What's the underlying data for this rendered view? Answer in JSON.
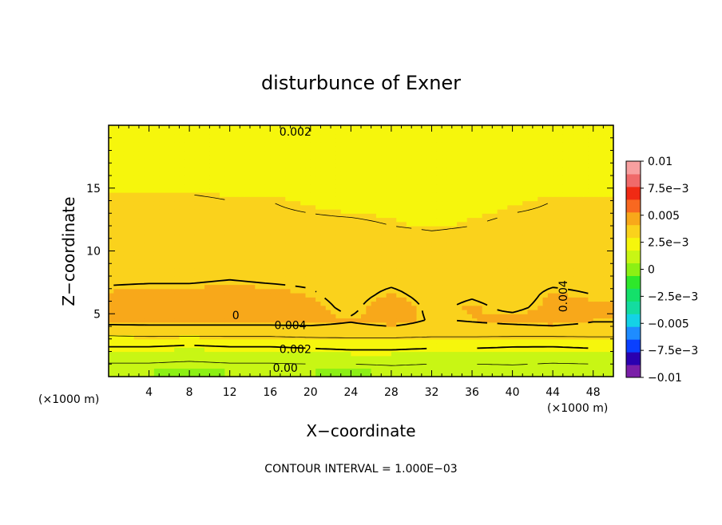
{
  "chart_data": {
    "type": "heatmap",
    "title": "disturbunce of Exner",
    "xlabel": "X−coordinate",
    "ylabel": "Z−coordinate",
    "x_unit": "(×1000 m)",
    "y_unit": "(×1000 m)",
    "xlim": [
      0,
      50
    ],
    "ylim": [
      0,
      20
    ],
    "x_ticks": [
      4,
      8,
      12,
      16,
      20,
      24,
      28,
      32,
      36,
      40,
      44,
      48
    ],
    "y_ticks": [
      5,
      10,
      15
    ],
    "colorbar": {
      "range": [
        -0.01,
        0.01
      ],
      "tick_values": [
        0.01,
        0.0075,
        0.005,
        0.0025,
        0,
        -0.0025,
        -0.005,
        -0.0075,
        -0.01
      ],
      "tick_labels": [
        "0.01",
        "7.5e−3",
        "0.005",
        "2.5e−3",
        "0",
        "−2.5e−3",
        "−0.005",
        "−7.5e−3",
        "−0.01"
      ],
      "colors": [
        "#7a1fa8",
        "#2a00b0",
        "#0a40ff",
        "#1e8cff",
        "#14d2e6",
        "#14dca0",
        "#14e06a",
        "#2ee82a",
        "#8cf014",
        "#c8f614",
        "#f6f60c",
        "#fad21c",
        "#f8a81a",
        "#f86820",
        "#f02a14",
        "#f06a6a",
        "#f8a0a0"
      ]
    },
    "z_rows": [
      {
        "z": 0.5,
        "values": [
          0.0006,
          0.0006,
          0.0005,
          0.0006,
          0.0006,
          0.0006,
          0.0005,
          0.0007,
          0.0006,
          0.0006,
          0.0007,
          0.0006,
          0.0006
        ]
      },
      {
        "z": 1.5,
        "values": [
          0.0013,
          0.0013,
          0.0012,
          0.0013,
          0.0013,
          0.0014,
          0.0015,
          0.0015,
          0.0014,
          0.0014,
          0.0014,
          0.0013,
          0.0014
        ]
      },
      {
        "z": 2.5,
        "values": [
          0.0021,
          0.0021,
          0.002,
          0.0021,
          0.0021,
          0.0022,
          0.0023,
          0.0023,
          0.0022,
          0.0022,
          0.0021,
          0.0021,
          0.0022
        ]
      },
      {
        "z": 3.5,
        "values": [
          0.0033,
          0.0034,
          0.0034,
          0.0034,
          0.0034,
          0.0035,
          0.0035,
          0.0035,
          0.0034,
          0.0034,
          0.0034,
          0.0034,
          0.0034
        ]
      },
      {
        "z": 4.5,
        "values": [
          0.0044,
          0.0044,
          0.0044,
          0.0044,
          0.0044,
          0.0044,
          0.0041,
          0.0045,
          0.0039,
          0.0041,
          0.0043,
          0.0045,
          0.0041
        ]
      },
      {
        "z": 5.5,
        "values": [
          0.0044,
          0.0045,
          0.0045,
          0.0045,
          0.0045,
          0.0043,
          0.0038,
          0.0046,
          0.0038,
          0.0042,
          0.0038,
          0.0043,
          0.0043
        ]
      },
      {
        "z": 6.5,
        "values": [
          0.0042,
          0.0043,
          0.0043,
          0.0044,
          0.0043,
          0.0041,
          0.0037,
          0.0042,
          0.0037,
          0.0039,
          0.0036,
          0.0042,
          0.004
        ]
      },
      {
        "z": 8,
        "values": [
          0.0038,
          0.0038,
          0.0038,
          0.0039,
          0.0038,
          0.0038,
          0.0037,
          0.0037,
          0.0036,
          0.0036,
          0.0038,
          0.0037,
          0.0037
        ]
      },
      {
        "z": 10,
        "values": [
          0.0035,
          0.0035,
          0.0035,
          0.0035,
          0.0035,
          0.0035,
          0.0035,
          0.0035,
          0.0034,
          0.0034,
          0.0034,
          0.0035,
          0.0035
        ]
      },
      {
        "z": 12,
        "values": [
          0.0032,
          0.0032,
          0.0032,
          0.0032,
          0.0031,
          0.0031,
          0.0031,
          0.003,
          0.0029,
          0.003,
          0.0031,
          0.0031,
          0.0031
        ]
      },
      {
        "z": 14,
        "values": [
          0.0031,
          0.0031,
          0.0031,
          0.003,
          0.003,
          0.0029,
          0.0028,
          0.0028,
          0.0027,
          0.0028,
          0.0029,
          0.003,
          0.003
        ]
      },
      {
        "z": 16,
        "values": [
          0.0027,
          0.0027,
          0.0027,
          0.0027,
          0.0027,
          0.0026,
          0.0026,
          0.0026,
          0.0025,
          0.0026,
          0.0026,
          0.0027,
          0.0027
        ]
      },
      {
        "z": 18,
        "values": [
          0.0024,
          0.0024,
          0.0024,
          0.0024,
          0.0024,
          0.0023,
          0.0023,
          0.0023,
          0.0023,
          0.0023,
          0.0023,
          0.0024,
          0.0024
        ]
      },
      {
        "z": 19.5,
        "values": [
          0.0021,
          0.0021,
          0.0021,
          0.0021,
          0.002,
          0.002,
          0.002,
          0.002,
          0.002,
          0.002,
          0.002,
          0.002,
          0.0021
        ]
      }
    ],
    "x_samples": [
      0,
      4,
      8,
      12,
      16,
      20,
      24,
      28,
      32,
      36,
      40,
      44,
      48
    ],
    "contour_labels": [
      {
        "text": "0.002",
        "x": 18.5,
        "z": 19.5
      },
      {
        "text": "0.004",
        "x": 18,
        "z": 4.1
      },
      {
        "text": "0",
        "x": 12.6,
        "z": 4.9
      },
      {
        "text": "0.002",
        "x": 18.5,
        "z": 2.2
      },
      {
        "text": "0.00",
        "x": 17.5,
        "z": 0.7
      },
      {
        "text": "0.004",
        "x": 45,
        "z": 6.4,
        "rotate": -90
      }
    ],
    "annotation": "CONTOUR INTERVAL = 1.000E−03"
  }
}
